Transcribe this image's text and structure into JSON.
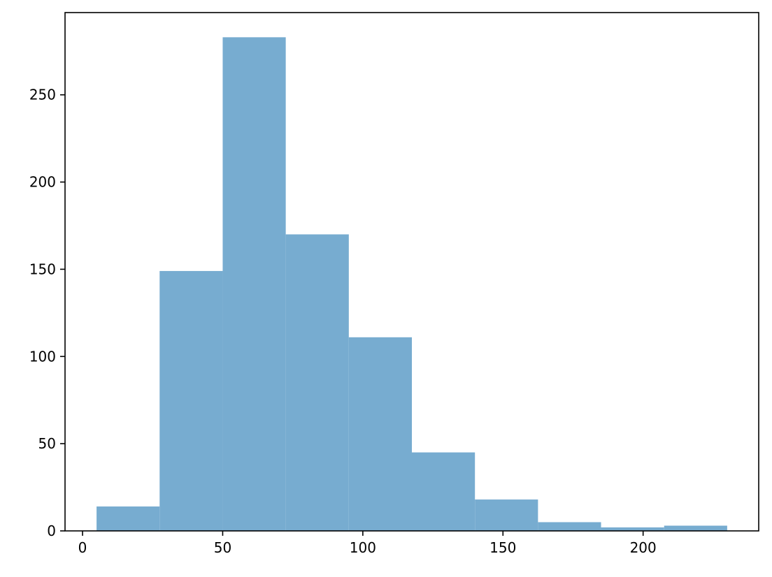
{
  "chart_data": {
    "type": "bar",
    "subtype": "histogram",
    "title": "",
    "xlabel": "",
    "ylabel": "",
    "bins": [
      {
        "start": 5.0,
        "end": 27.5,
        "count": 14
      },
      {
        "start": 27.5,
        "end": 50.0,
        "count": 149
      },
      {
        "start": 50.0,
        "end": 72.5,
        "count": 283
      },
      {
        "start": 72.5,
        "end": 95.0,
        "count": 170
      },
      {
        "start": 95.0,
        "end": 117.5,
        "count": 111
      },
      {
        "start": 117.5,
        "end": 140.0,
        "count": 45
      },
      {
        "start": 140.0,
        "end": 162.5,
        "count": 18
      },
      {
        "start": 162.5,
        "end": 185.0,
        "count": 5
      },
      {
        "start": 185.0,
        "end": 207.5,
        "count": 2
      },
      {
        "start": 207.5,
        "end": 230.0,
        "count": 3
      }
    ],
    "xlim": [
      -6.25,
      241.25
    ],
    "ylim": [
      0,
      297.15
    ],
    "xticks": [
      0,
      50,
      100,
      150,
      200
    ],
    "yticks": [
      0,
      50,
      100,
      150,
      200,
      250
    ],
    "xtick_labels": [
      "0",
      "50",
      "100",
      "150",
      "200"
    ],
    "ytick_labels": [
      "0",
      "50",
      "100",
      "150",
      "200",
      "250"
    ],
    "bar_color": "#77acd0",
    "grid": false,
    "legend": "none"
  }
}
